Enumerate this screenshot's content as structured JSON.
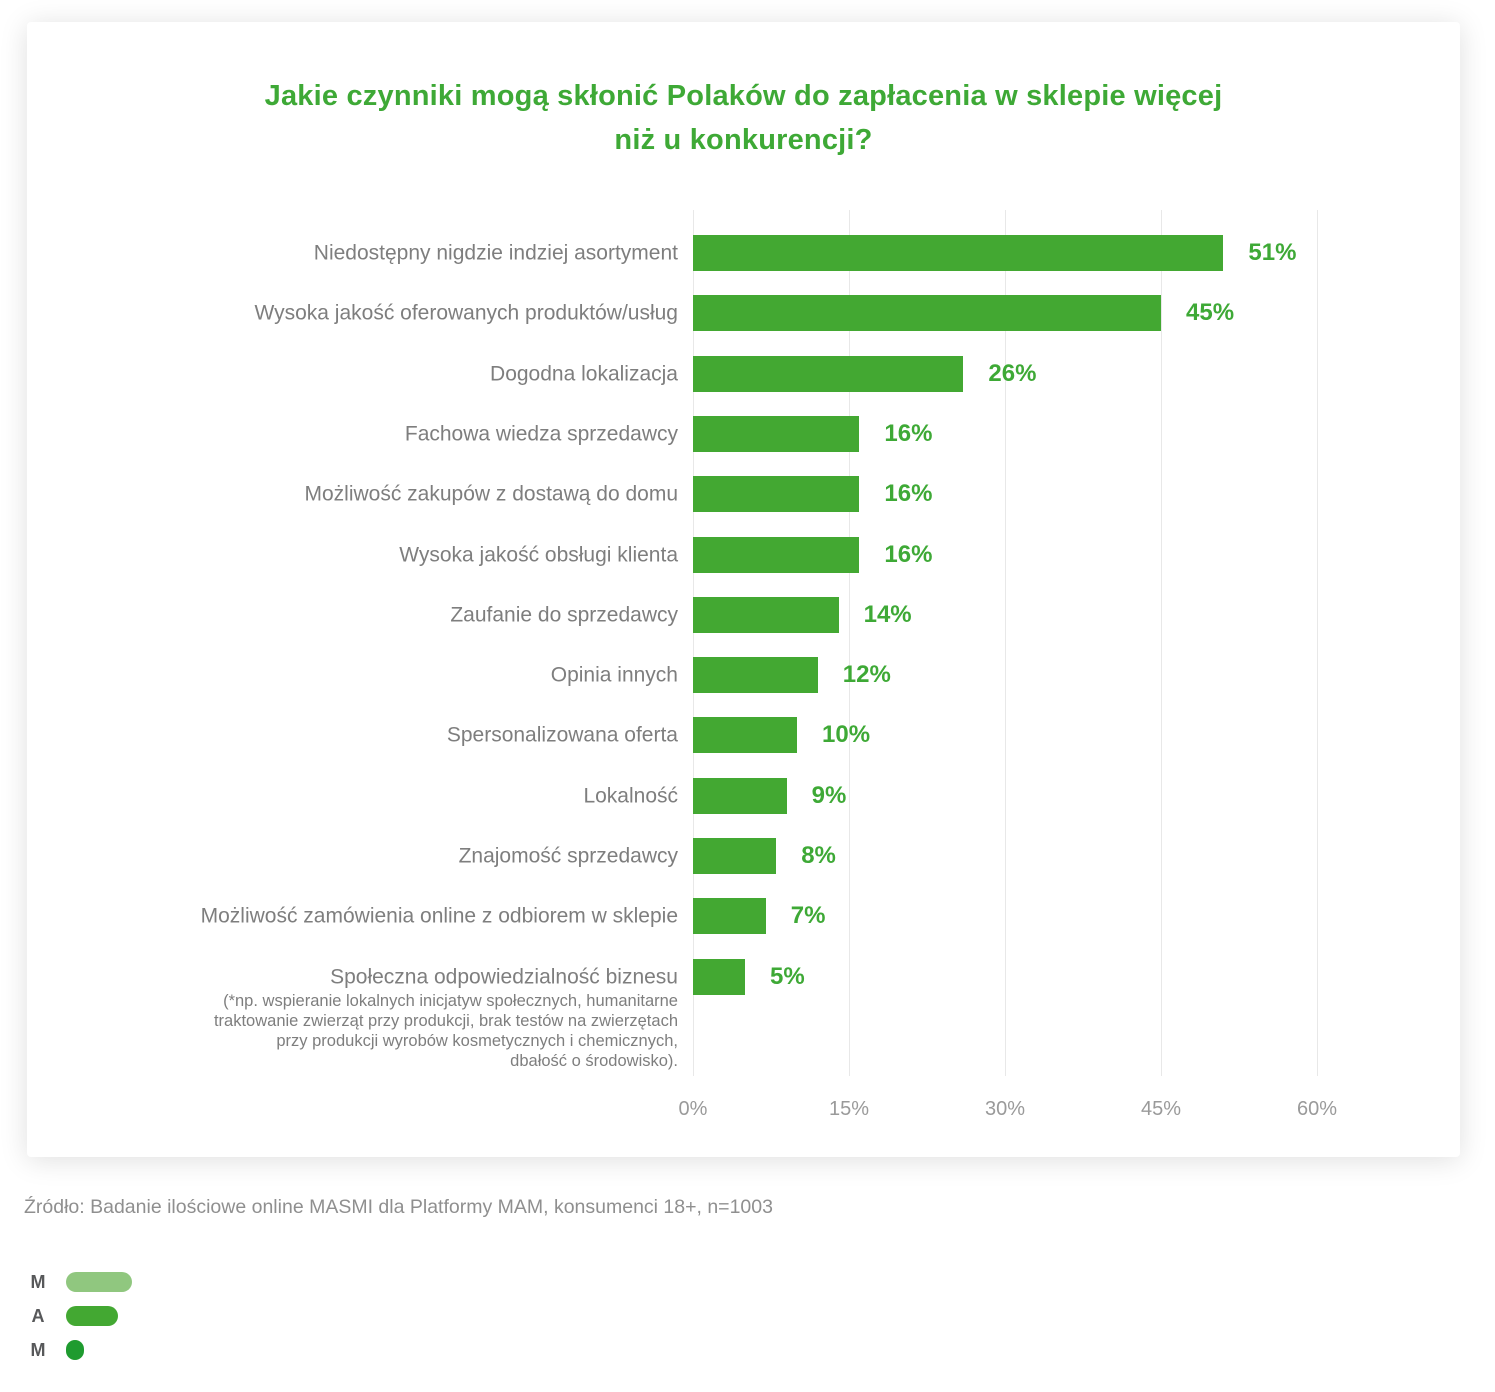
{
  "title_lines": [
    "Jakie czynniki mogą skłonić Polaków do zapłacenia w sklepie więcej",
    "niż u konkurencji?"
  ],
  "source": "Źródło: Badanie ilościowe online MASMI dla Platformy MAM, konsumenci 18+, n=1003",
  "colors": {
    "title_green": "#3EA936",
    "bar_green": "#43A832",
    "label_gray": "#7E7E7E",
    "axis_gray": "#9A9A9A",
    "gridline": "#e8e8e8"
  },
  "chart_data": {
    "type": "bar",
    "orientation": "horizontal",
    "title": "Jakie czynniki mogą skłonić Polaków do zapłacenia w sklepie więcej niż u konkurencji?",
    "categories": [
      "Niedostępny nigdzie indziej asortyment",
      "Wysoka jakość oferowanych produktów/usług",
      "Dogodna lokalizacja",
      "Fachowa wiedza sprzedawcy",
      "Możliwość zakupów z dostawą do domu",
      "Wysoka jakość obsługi klienta",
      "Zaufanie do sprzedawcy",
      "Opinia innych",
      "Spersonalizowana oferta",
      "Lokalność",
      "Znajomość sprzedawcy",
      "Możliwość zamówienia online z odbiorem w sklepie",
      "Społeczna odpowiedzialność biznesu"
    ],
    "values": [
      51,
      45,
      26,
      16,
      16,
      16,
      14,
      12,
      10,
      9,
      8,
      7,
      5
    ],
    "value_suffix": "%",
    "footnote_lines": [
      "(*np. wspieranie lokalnych inicjatyw społecznych, humanitarne",
      "traktowanie zwierząt przy produkcji, brak testów na zwierzętach",
      "przy produkcji wyrobów kosmetycznych i chemicznych,",
      "dbałość o środowisko)."
    ],
    "xlabel": "",
    "ylabel": "",
    "xlim": [
      0,
      60
    ],
    "xticks": [
      "0%",
      "15%",
      "30%",
      "45%",
      "60%"
    ],
    "grid": true,
    "legend": false
  },
  "logo": {
    "rows": [
      {
        "letter": "M",
        "shape": "pill",
        "width": 66,
        "color": "#90C77F"
      },
      {
        "letter": "A",
        "shape": "pill",
        "width": 52,
        "color": "#43A832"
      },
      {
        "letter": "M",
        "shape": "dot",
        "width": 18,
        "color": "#1E9B2F"
      }
    ]
  }
}
